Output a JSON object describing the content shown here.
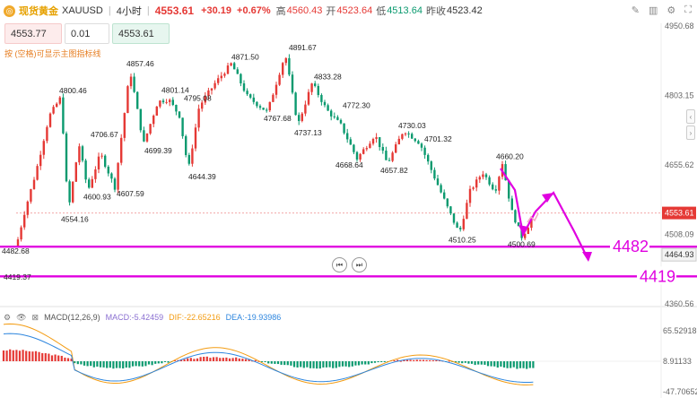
{
  "header": {
    "name": "现货黄金",
    "ticker": "XAUUSD",
    "interval": "4小时",
    "price": "4553.61",
    "change": "+30.19",
    "change_pct": "+0.67%",
    "high_label": "高",
    "high": "4560.43",
    "open_label": "开",
    "open": "4523.64",
    "low_label": "低",
    "low": "4513.64",
    "prev_label": "昨收",
    "prev": "4523.42"
  },
  "order": {
    "sell_price": "4553.77",
    "quantity": "0.01",
    "buy_price": "4553.61",
    "hint": "按 (空格)可显示主图指标线"
  },
  "macd": {
    "title": "MACD(12,26,9)",
    "macd_label": "MACD:",
    "macd_value": "-5.42459",
    "dif_label": "DIF:",
    "dif_value": "-22.65216",
    "dea_label": "DEA:",
    "dea_value": "-19.93986"
  },
  "chart_data": {
    "type": "candlestick",
    "price_axis": [
      "4950.68",
      "4803.15",
      "4655.62",
      "4508.09",
      "4360.56"
    ],
    "price_range": [
      4360.56,
      4950.68
    ],
    "current_price": 4553.61,
    "current_price_label": "4553.61",
    "cursor_price": 4464.93,
    "cursor_price_label": "4464.93",
    "annotations": [
      {
        "label": "4482.68",
        "price": 4482.68
      },
      {
        "label": "4800.46",
        "price": 4800.46
      },
      {
        "label": "4554.16",
        "price": 4554.16
      },
      {
        "label": "4706.67",
        "price": 4706.67
      },
      {
        "label": "4600.93",
        "price": 4600.93
      },
      {
        "label": "4607.59",
        "price": 4607.59
      },
      {
        "label": "4857.46",
        "price": 4857.46
      },
      {
        "label": "4699.39",
        "price": 4699.39
      },
      {
        "label": "4801.14",
        "price": 4801.14
      },
      {
        "label": "4795.08",
        "price": 4795.08
      },
      {
        "label": "4644.39",
        "price": 4644.39
      },
      {
        "label": "4871.50",
        "price": 4871.5
      },
      {
        "label": "4767.68",
        "price": 4767.68
      },
      {
        "label": "4891.67",
        "price": 4891.67
      },
      {
        "label": "4833.28",
        "price": 4833.28
      },
      {
        "label": "4737.13",
        "price": 4737.13
      },
      {
        "label": "4772.30",
        "price": 4772.3
      },
      {
        "label": "4668.64",
        "price": 4668.64
      },
      {
        "label": "4730.03",
        "price": 4730.03
      },
      {
        "label": "4657.82",
        "price": 4657.82
      },
      {
        "label": "4701.32",
        "price": 4701.32
      },
      {
        "label": "4660.20",
        "price": 4660.2
      },
      {
        "label": "4510.25",
        "price": 4510.25
      },
      {
        "label": "4500.69",
        "price": 4500.69
      },
      {
        "label": "4419.37",
        "price": 4419.37
      }
    ],
    "levels": [
      {
        "label": "4482",
        "price": 4482,
        "color": "#e000e0"
      },
      {
        "label": "4419",
        "price": 4419,
        "color": "#e000e0"
      }
    ],
    "macd_axis": [
      "65.52918",
      "8.91133",
      "-47.70652"
    ],
    "macd_range": [
      -47.70652,
      65.52918
    ],
    "colors": {
      "up": "#e53935",
      "down": "#0b9a6f",
      "level": "#e000e0",
      "dif": "#f39c12",
      "dea": "#2e86de"
    }
  }
}
